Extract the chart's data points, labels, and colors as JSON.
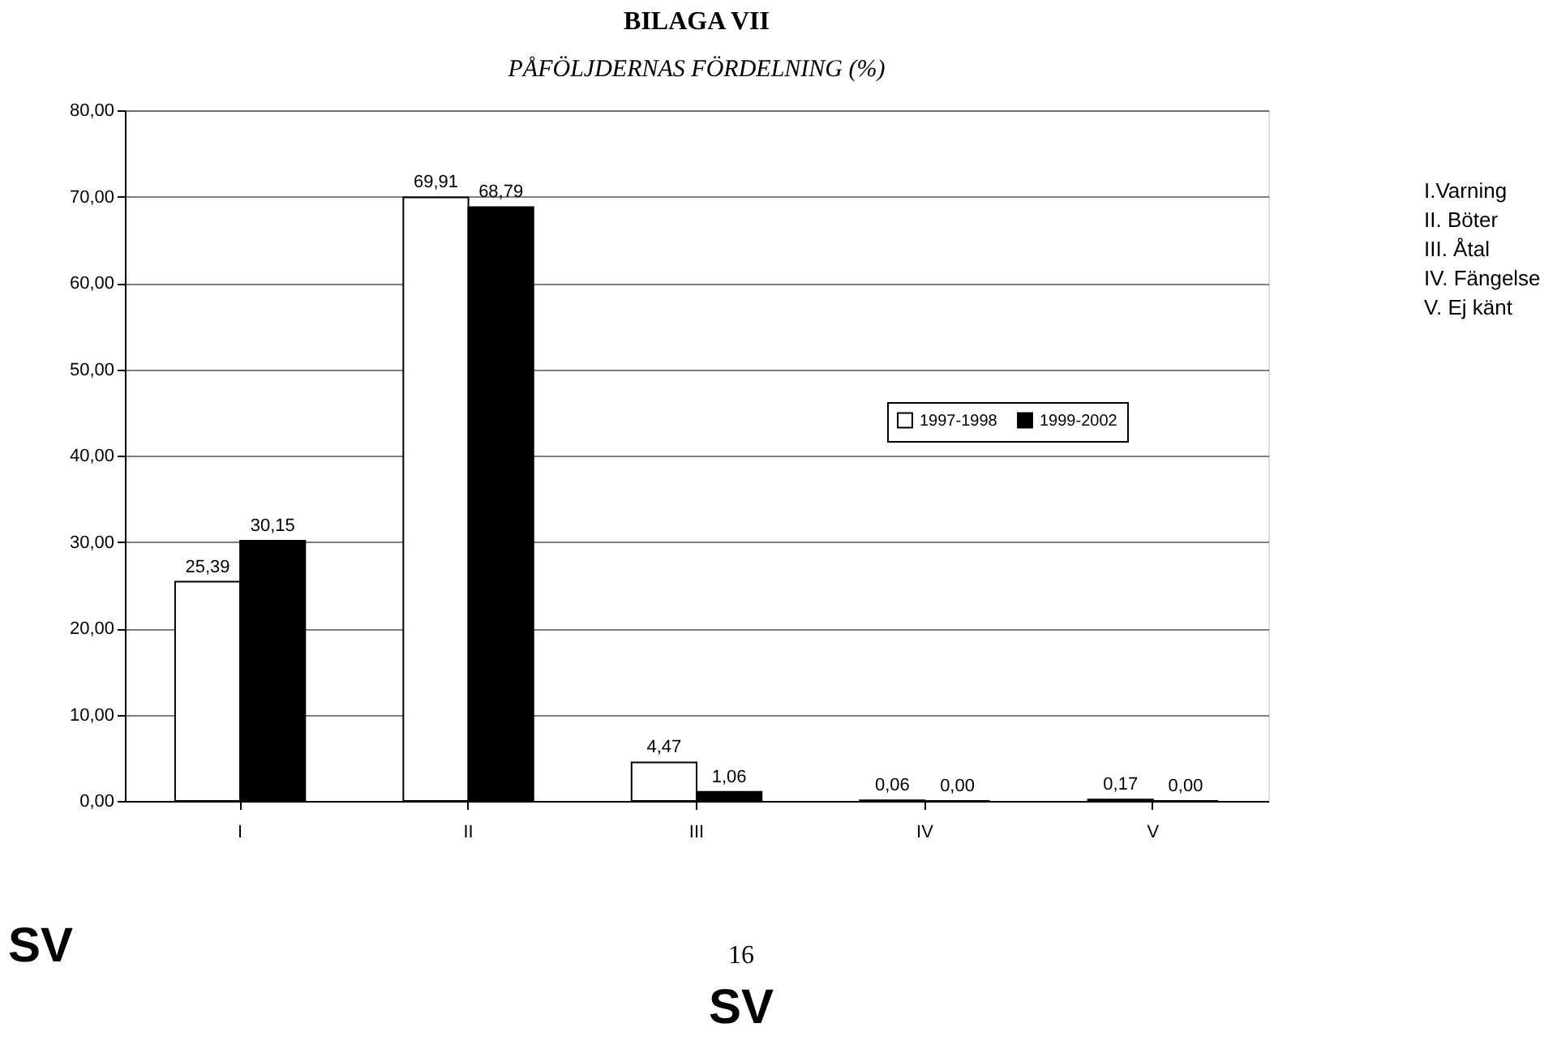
{
  "chart_data": {
    "type": "bar",
    "title": "BILAGA VII",
    "subtitle": "PÅFÖLJDERNAS FÖRDELNING (%)",
    "categories": [
      "I",
      "II",
      "III",
      "IV",
      "V"
    ],
    "series": [
      {
        "name": "1997-1998",
        "color": "#ffffff",
        "values": [
          25.39,
          69.91,
          4.47,
          0.06,
          0.17
        ],
        "value_labels": [
          "25,39",
          "69,91",
          "4,47",
          "0,06",
          "0,17"
        ]
      },
      {
        "name": "1999-2002",
        "color": "#000000",
        "values": [
          30.15,
          68.79,
          1.06,
          0.0,
          0.0
        ],
        "value_labels": [
          "30,15",
          "68,79",
          "1,06",
          "0,00",
          "0,00"
        ]
      }
    ],
    "ylim": [
      0,
      80
    ],
    "yticks": [
      {
        "value": 0,
        "label": "0,00"
      },
      {
        "value": 10,
        "label": "10,00"
      },
      {
        "value": 20,
        "label": "20,00"
      },
      {
        "value": 30,
        "label": "30,00"
      },
      {
        "value": 40,
        "label": "40,00"
      },
      {
        "value": 50,
        "label": "50,00"
      },
      {
        "value": 60,
        "label": "60,00"
      },
      {
        "value": 70,
        "label": "70,00"
      },
      {
        "value": 80,
        "label": "80,00"
      }
    ],
    "grid": "y",
    "legend": "right",
    "annotations": [
      "I.Varning",
      "II. Böter",
      "III. Åtal",
      "IV. Fängelse",
      "V. Ej känt",
      "SV",
      "16",
      "SV"
    ]
  }
}
